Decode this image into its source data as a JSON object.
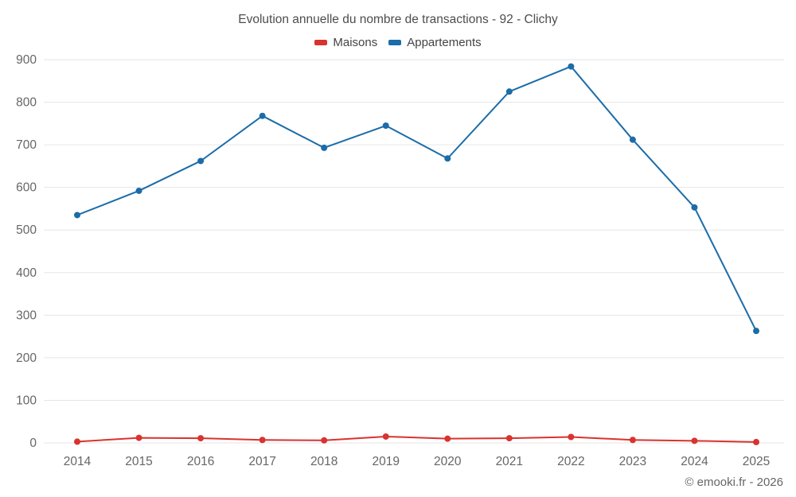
{
  "chart": {
    "title": "Evolution annuelle du nombre de transactions - 92 - Clichy"
  },
  "footer": {
    "text": "© emooki.fr - 2026"
  },
  "chart_data": {
    "type": "line",
    "title": "Evolution annuelle du nombre de transactions - 92 - Clichy",
    "categories": [
      "2014",
      "2015",
      "2016",
      "2017",
      "2018",
      "2019",
      "2020",
      "2021",
      "2022",
      "2023",
      "2024",
      "2025"
    ],
    "series": [
      {
        "name": "Maisons",
        "color": "#d9332f",
        "values": [
          3,
          12,
          11,
          7,
          6,
          15,
          10,
          11,
          14,
          7,
          5,
          2
        ]
      },
      {
        "name": "Appartements",
        "color": "#1b6ca8",
        "values": [
          535,
          592,
          662,
          768,
          693,
          745,
          668,
          825,
          884,
          712,
          553,
          263
        ]
      }
    ],
    "xlabel": "",
    "ylabel": "",
    "ylim": [
      0,
      900
    ],
    "ytick_step": 100,
    "grid": "horizontal",
    "legend_position": "top",
    "grid_color": "#e6e6e6",
    "tick_label_color": "#666666",
    "marker_radius": 4,
    "line_width": 2
  }
}
